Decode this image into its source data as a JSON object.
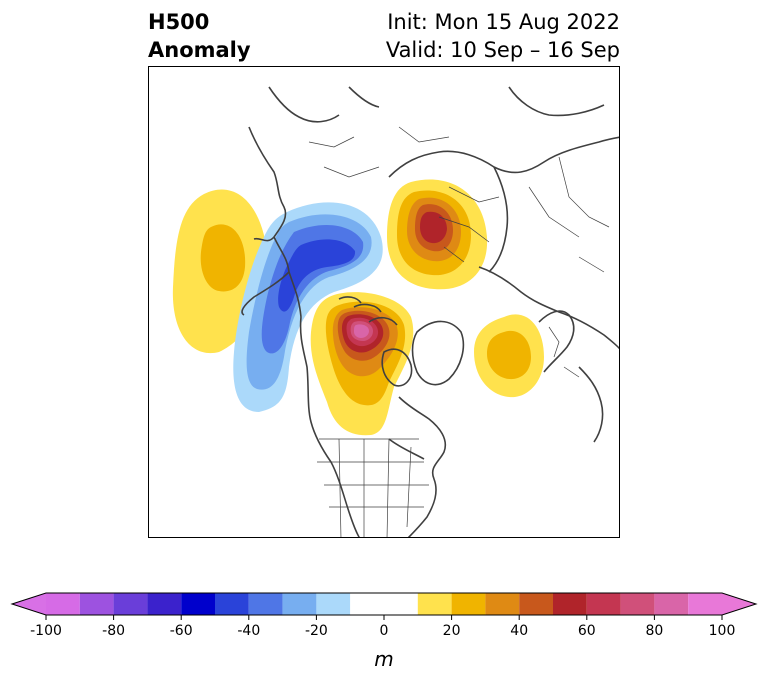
{
  "title": {
    "left_line1": "H500",
    "left_line2": "Anomaly",
    "right_line1": "Init: Mon 15 Aug 2022",
    "right_line2": "Valid: 10 Sep – 16 Sep"
  },
  "colorbar": {
    "label": "m",
    "ticks": [
      "-100",
      "-80",
      "-60",
      "-40",
      "-20",
      "0",
      "20",
      "40",
      "60",
      "80",
      "100"
    ],
    "levels": [
      -100,
      -90,
      -80,
      -70,
      -60,
      -50,
      -40,
      -30,
      -20,
      -10,
      10,
      20,
      30,
      40,
      50,
      60,
      70,
      80,
      90,
      100
    ],
    "colors": [
      "#d66be6",
      "#9d52e0",
      "#6a3ed9",
      "#3b22cc",
      "#0000cc",
      "#2a43d9",
      "#4f76e6",
      "#77aef0",
      "#abd9fa",
      "#ffffff",
      "#ffe24d",
      "#f0b400",
      "#df8a14",
      "#c8581c",
      "#b0242a",
      "#c43651",
      "#d0507a",
      "#d965a8",
      "#e878d8"
    ],
    "under_color": "#d870e6",
    "over_color": "#e878d8"
  },
  "anomalies": [
    {
      "name": "west-pacific-positive",
      "level": 20
    },
    {
      "name": "alaska-negative",
      "level": -40
    },
    {
      "name": "siberia-positive",
      "level": 60
    },
    {
      "name": "canada-positive",
      "level": 80
    },
    {
      "name": "atlantic-positive",
      "level": 20
    }
  ]
}
